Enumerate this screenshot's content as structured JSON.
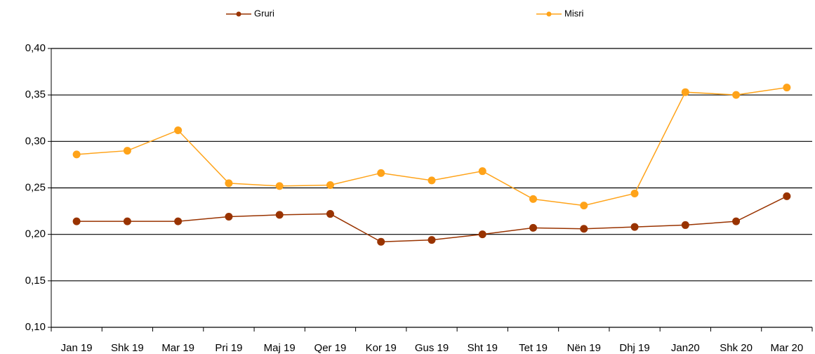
{
  "chart_data": {
    "type": "line",
    "categories": [
      "Jan  19",
      "Shk 19",
      "Mar  19",
      "Pri  19",
      "Maj 19",
      "Qer  19",
      "Kor 19",
      "Gus 19",
      "Sht  19",
      "Tet  19",
      "Nën 19",
      "Dhj  19",
      "Jan20",
      "Shk 20",
      "Mar  20"
    ],
    "series": [
      {
        "name": "Gruri",
        "color": "#993300",
        "values": [
          0.214,
          0.214,
          0.214,
          0.219,
          0.221,
          0.222,
          0.192,
          0.194,
          0.2,
          0.207,
          0.206,
          0.208,
          0.21,
          0.214,
          0.241
        ]
      },
      {
        "name": "Misri",
        "color": "#ffa319",
        "values": [
          0.286,
          0.29,
          0.312,
          0.255,
          0.252,
          0.253,
          0.266,
          0.258,
          0.268,
          0.238,
          0.231,
          0.244,
          0.353,
          0.35,
          0.358
        ]
      }
    ],
    "ylim": [
      0.1,
      0.4
    ],
    "yticks": [
      {
        "value": 0.1,
        "label": "0,10"
      },
      {
        "value": 0.15,
        "label": "0,15"
      },
      {
        "value": 0.2,
        "label": "0,20"
      },
      {
        "value": 0.25,
        "label": "0,25"
      },
      {
        "value": 0.3,
        "label": "0,30"
      },
      {
        "value": 0.35,
        "label": "0,35"
      },
      {
        "value": 0.4,
        "label": "0,40"
      }
    ],
    "grid": true,
    "legend": "top"
  }
}
